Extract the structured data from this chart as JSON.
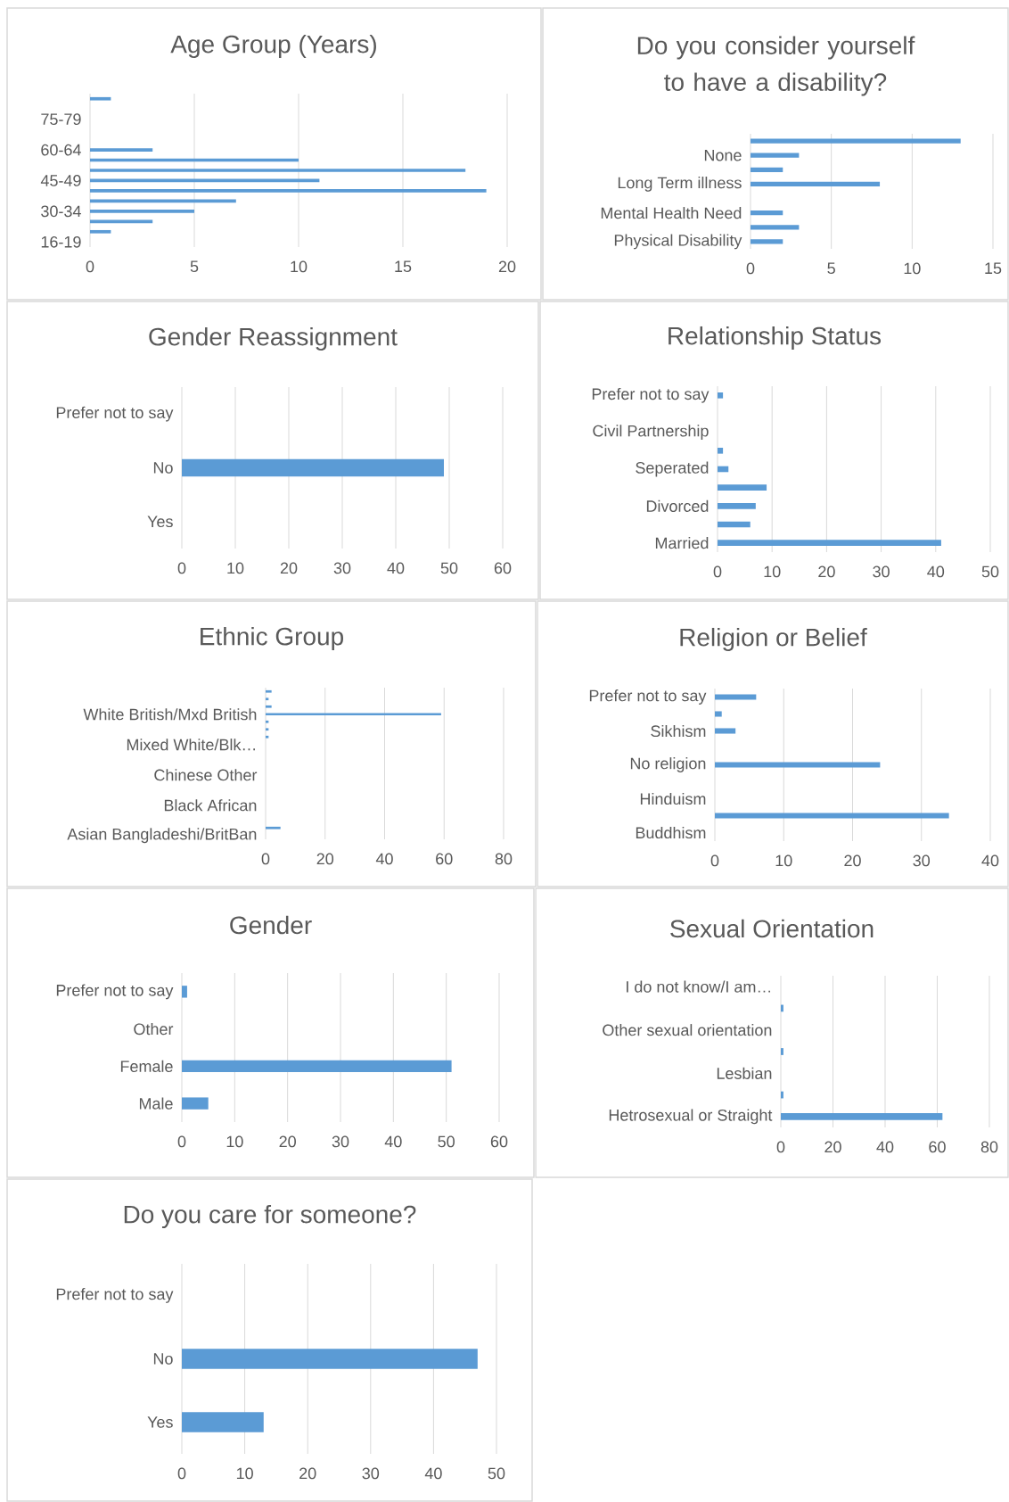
{
  "chart_data": [
    {
      "type": "bar",
      "orientation": "horizontal",
      "title": "Age Group (Years)",
      "categories": [
        null,
        null,
        "75-79",
        null,
        null,
        "60-64",
        null,
        null,
        "45-49",
        null,
        null,
        "30-34",
        null,
        null,
        "16-19"
      ],
      "values": [
        1,
        0,
        0,
        0,
        0,
        3,
        10,
        18,
        11,
        19,
        7,
        5,
        3,
        1,
        0
      ],
      "color": "#5b9bd5",
      "xlim": [
        0,
        20
      ],
      "xticks": [
        0,
        5,
        10,
        15,
        20
      ],
      "grid": "x"
    },
    {
      "type": "bar",
      "orientation": "horizontal",
      "title": "Do you consider yourself to have a disability?",
      "categories": [
        null,
        "None",
        null,
        "Long Term illness",
        null,
        "Mental Health Need",
        null,
        "Physical Disability"
      ],
      "values": [
        13,
        3,
        2,
        8,
        0,
        2,
        3,
        2
      ],
      "color": "#5b9bd5",
      "xlim": [
        0,
        15
      ],
      "xticks": [
        0,
        5,
        10,
        15
      ],
      "grid": "x"
    },
    {
      "type": "bar",
      "orientation": "horizontal",
      "title": "Gender Reassignment",
      "categories": [
        "Prefer not to say",
        "No",
        "Yes"
      ],
      "values": [
        0,
        49,
        0
      ],
      "color": "#5b9bd5",
      "xlim": [
        0,
        60
      ],
      "xticks": [
        0,
        10,
        20,
        30,
        40,
        50,
        60
      ],
      "grid": "x"
    },
    {
      "type": "bar",
      "orientation": "horizontal",
      "title": "Relationship Status",
      "categories": [
        "Prefer not to say",
        null,
        "Civil Partnership",
        null,
        "Seperated",
        null,
        "Divorced",
        null,
        "Married"
      ],
      "values": [
        1,
        0,
        0,
        1,
        2,
        9,
        7,
        6,
        41
      ],
      "color": "#5b9bd5",
      "xlim": [
        0,
        50
      ],
      "xticks": [
        0,
        10,
        20,
        30,
        40,
        50
      ],
      "grid": "x"
    },
    {
      "type": "bar",
      "orientation": "horizontal",
      "title": "Ethnic Group",
      "categories": [
        null,
        null,
        null,
        "White British/Mxd British",
        null,
        null,
        null,
        "Mixed White/Blk…",
        null,
        null,
        null,
        "Chinese Other",
        null,
        null,
        null,
        "Black African",
        null,
        null,
        null,
        "Asian Bangladeshi/BritBan"
      ],
      "values": [
        2,
        1,
        2,
        59,
        1,
        1,
        1,
        0,
        0,
        0,
        0,
        0,
        0,
        0,
        0,
        0,
        0,
        0,
        5,
        0
      ],
      "color": "#5b9bd5",
      "xlim": [
        0,
        80
      ],
      "xticks": [
        0,
        20,
        40,
        60,
        80
      ],
      "grid": "x"
    },
    {
      "type": "bar",
      "orientation": "horizontal",
      "title": "Religion or Belief",
      "categories": [
        "Prefer not to say",
        null,
        "Sikhism",
        null,
        "No religion",
        null,
        "Hinduism",
        null,
        "Buddhism"
      ],
      "values": [
        6,
        1,
        3,
        0,
        24,
        0,
        0,
        34,
        0
      ],
      "color": "#5b9bd5",
      "xlim": [
        0,
        40
      ],
      "xticks": [
        0,
        10,
        20,
        30,
        40
      ],
      "grid": "x"
    },
    {
      "type": "bar",
      "orientation": "horizontal",
      "title": "Gender",
      "categories": [
        "Prefer not to say",
        "Other",
        "Female",
        "Male"
      ],
      "values": [
        1,
        0,
        51,
        5
      ],
      "color": "#5b9bd5",
      "xlim": [
        0,
        60
      ],
      "xticks": [
        0,
        10,
        20,
        30,
        40,
        50,
        60
      ],
      "grid": "x"
    },
    {
      "type": "bar",
      "orientation": "horizontal",
      "title": "Sexual Orientation",
      "categories": [
        "I do not know/I am…",
        null,
        "Other sexual orientation",
        null,
        "Lesbian",
        null,
        "Hetrosexual or Straight"
      ],
      "values": [
        0,
        1,
        0,
        1,
        0,
        1,
        62
      ],
      "color": "#5b9bd5",
      "xlim": [
        0,
        80
      ],
      "xticks": [
        0,
        20,
        40,
        60,
        80
      ],
      "grid": "x"
    },
    {
      "type": "bar",
      "orientation": "horizontal",
      "title": "Do you care for someone?",
      "categories": [
        "Prefer not to say",
        "No",
        "Yes"
      ],
      "values": [
        0,
        47,
        13
      ],
      "color": "#5b9bd5",
      "xlim": [
        0,
        50
      ],
      "xticks": [
        0,
        10,
        20,
        30,
        40,
        50
      ],
      "grid": "x"
    }
  ]
}
